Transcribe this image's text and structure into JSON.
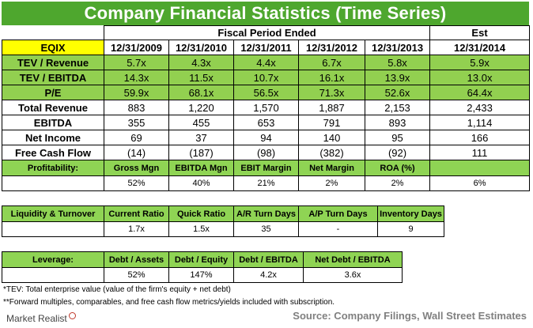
{
  "title": "Company Financial Statistics (Time Series)",
  "main": {
    "ticker": "EQIX",
    "fiscal_header": "Fiscal Period Ended",
    "est_header": "Est",
    "periods": [
      "12/31/2009",
      "12/31/2010",
      "12/31/2011",
      "12/31/2012",
      "12/31/2013",
      "12/31/2014"
    ],
    "multiples": [
      {
        "label": "TEV / Revenue",
        "values": [
          "5.7x",
          "4.3x",
          "4.4x",
          "6.7x",
          "5.8x",
          "5.9x"
        ]
      },
      {
        "label": "TEV / EBITDA",
        "values": [
          "14.3x",
          "11.5x",
          "10.7x",
          "16.1x",
          "13.9x",
          "13.0x"
        ]
      },
      {
        "label": "P/E",
        "values": [
          "59.9x",
          "68.1x",
          "56.5x",
          "71.3x",
          "52.6x",
          "64.4x"
        ]
      }
    ],
    "financials": [
      {
        "label": "Total Revenue",
        "values": [
          "883",
          "1,220",
          "1,570",
          "1,887",
          "2,153",
          "2,433"
        ]
      },
      {
        "label": "EBITDA",
        "values": [
          "355",
          "455",
          "653",
          "791",
          "893",
          "1,114"
        ]
      },
      {
        "label": "Net Income",
        "values": [
          "69",
          "37",
          "94",
          "140",
          "95",
          "166"
        ]
      },
      {
        "label": "Free Cash Flow",
        "values": [
          "(14)",
          "(187)",
          "(98)",
          "(382)",
          "(92)",
          "111"
        ]
      }
    ],
    "profitability": {
      "label": "Profitability:",
      "headers": [
        "Gross Mgn",
        "EBITDA Mgn",
        "EBIT Margin",
        "Net Margin",
        "ROA (%)",
        ""
      ],
      "values": [
        "52%",
        "40%",
        "21%",
        "2%",
        "2%",
        "6%"
      ]
    }
  },
  "liquidity": {
    "label": "Liquidity & Turnover",
    "headers": [
      "Current Ratio",
      "Quick Ratio",
      "A/R Turn Days",
      "A/P Turn Days",
      "Inventory Days"
    ],
    "values": [
      "1.7x",
      "1.5x",
      "35",
      "-",
      "9"
    ]
  },
  "leverage": {
    "label": "Leverage:",
    "headers": [
      "Debt / Assets",
      "Debt / Equity",
      "Debt / EBITDA",
      "Net Debt / EBITDA"
    ],
    "values": [
      "52%",
      "147%",
      "4.2x",
      "3.6x"
    ]
  },
  "notes": {
    "tev": "*TEV: Total enterprise value (value of the firm's equity + net debt)",
    "forward": "**Forward multiples, comparables, and free cash flow metrics/yields included with subscription."
  },
  "logo_text": "Market Realist",
  "source": "Source: Company Filings, Wall Street Estimates",
  "colors": {
    "title_bg": "#4ea72e",
    "highlight_green": "#92d050",
    "highlight_yellow": "#ffff00"
  }
}
